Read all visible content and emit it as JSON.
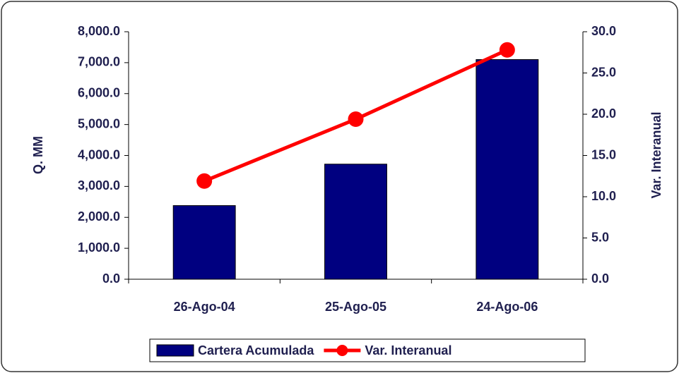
{
  "chart_data": {
    "type": "bar",
    "categories": [
      "26-Ago-04",
      "25-Ago-05",
      "24-Ago-06"
    ],
    "series": [
      {
        "name": "Cartera Acumulada",
        "type": "bar",
        "color": "#000080",
        "values": [
          2380,
          3720,
          7100
        ]
      },
      {
        "name": "Var. Interanual",
        "type": "line",
        "color": "#ff0000",
        "axis": "y2",
        "values": [
          11.9,
          19.4,
          27.8
        ]
      }
    ],
    "ylabel": "Q. MM",
    "y2label": "Var. Interanual",
    "ylim": [
      0,
      8000
    ],
    "yticks": [
      {
        "value": 0,
        "label": "0.0"
      },
      {
        "value": 1000,
        "label": "1,000.0"
      },
      {
        "value": 2000,
        "label": "2,000.0"
      },
      {
        "value": 3000,
        "label": "3,000.0"
      },
      {
        "value": 4000,
        "label": "4,000.0"
      },
      {
        "value": 5000,
        "label": "5,000.0"
      },
      {
        "value": 6000,
        "label": "6,000.0"
      },
      {
        "value": 7000,
        "label": "7,000.0"
      },
      {
        "value": 8000,
        "label": "8,000.0"
      }
    ],
    "y2lim": [
      0,
      30
    ],
    "y2ticks": [
      {
        "value": 0,
        "label": "0.0"
      },
      {
        "value": 5,
        "label": "5.0"
      },
      {
        "value": 10,
        "label": "10.0"
      },
      {
        "value": 15,
        "label": "15.0"
      },
      {
        "value": 20,
        "label": "20.0"
      },
      {
        "value": 25,
        "label": "25.0"
      },
      {
        "value": 30,
        "label": "30.0"
      }
    ],
    "legend": "bottom"
  }
}
